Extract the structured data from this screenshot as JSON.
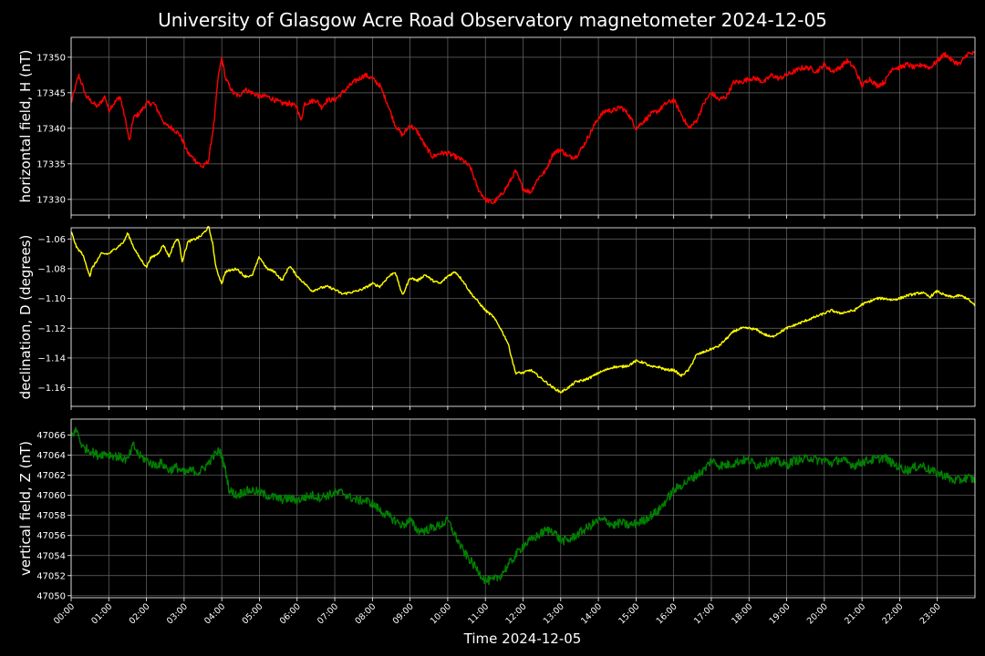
{
  "chart_data": {
    "type": "line",
    "title": "University of Glasgow Acre Road Observatory magnetometer 2024-12-05",
    "xlabel": "Time 2024-12-05",
    "x_ticks": [
      "00:00",
      "01:00",
      "02:00",
      "03:00",
      "04:00",
      "05:00",
      "06:00",
      "07:00",
      "08:00",
      "09:00",
      "10:00",
      "11:00",
      "12:00",
      "13:00",
      "14:00",
      "15:00",
      "16:00",
      "17:00",
      "18:00",
      "19:00",
      "20:00",
      "21:00",
      "22:00",
      "23:00"
    ],
    "x_unit": "hours",
    "xlim": [
      0,
      24
    ],
    "grid": true,
    "panels": [
      {
        "name": "horizontal",
        "ylabel": "horizontal field, H (nT)",
        "color": "#ff0000",
        "ylim": [
          17327.8,
          17352.8
        ],
        "y_ticks": [
          17330,
          17335,
          17340,
          17345,
          17350
        ],
        "y_tick_labels": [
          "17330",
          "17335",
          "17340",
          "17345",
          "17350"
        ],
        "noise": 0.35,
        "x": [
          0,
          0.2,
          0.4,
          0.5,
          0.7,
          0.9,
          1.0,
          1.05,
          1.3,
          1.45,
          1.55,
          1.65,
          1.8,
          2.0,
          2.2,
          2.35,
          2.5,
          2.7,
          2.9,
          3.1,
          3.3,
          3.5,
          3.65,
          3.8,
          3.9,
          4.0,
          4.1,
          4.3,
          4.45,
          4.6,
          4.8,
          5.0,
          5.2,
          5.4,
          5.6,
          5.8,
          6.0,
          6.1,
          6.2,
          6.5,
          6.65,
          6.8,
          7.0,
          7.2,
          7.5,
          7.8,
          8.0,
          8.2,
          8.4,
          8.6,
          8.8,
          9.0,
          9.2,
          9.4,
          9.6,
          9.8,
          10.0,
          10.2,
          10.4,
          10.6,
          10.8,
          11.0,
          11.2,
          11.4,
          11.6,
          11.8,
          12.0,
          12.2,
          12.4,
          12.6,
          12.8,
          13.0,
          13.2,
          13.4,
          13.6,
          13.8,
          14.0,
          14.2,
          14.4,
          14.6,
          14.8,
          15.0,
          15.2,
          15.4,
          15.6,
          15.8,
          16.0,
          16.2,
          16.4,
          16.6,
          16.8,
          17.0,
          17.2,
          17.4,
          17.6,
          17.8,
          18.0,
          18.2,
          18.4,
          18.6,
          18.8,
          19.0,
          19.2,
          19.4,
          19.6,
          19.8,
          20.0,
          20.2,
          20.4,
          20.6,
          20.8,
          21.0,
          21.2,
          21.4,
          21.6,
          21.8,
          22.0,
          22.2,
          22.4,
          22.6,
          22.8,
          23.0,
          23.2,
          23.4,
          23.6,
          23.8,
          24.0
        ],
        "y": [
          17343.5,
          17347.5,
          17344.5,
          17344.0,
          17343.0,
          17344.5,
          17342.5,
          17343.0,
          17344.5,
          17341.0,
          17338.0,
          17341.5,
          17342.0,
          17343.5,
          17343.5,
          17342.0,
          17340.5,
          17340.0,
          17339.0,
          17336.5,
          17335.5,
          17334.5,
          17335.5,
          17341.0,
          17347.0,
          17350.0,
          17347.0,
          17345.0,
          17344.5,
          17345.5,
          17345.0,
          17344.5,
          17344.5,
          17344.0,
          17343.5,
          17343.5,
          17343.0,
          17341.0,
          17343.5,
          17344.0,
          17343.0,
          17344.0,
          17344.0,
          17345.0,
          17346.5,
          17347.5,
          17347.0,
          17346.0,
          17343.5,
          17340.5,
          17339.0,
          17340.5,
          17339.5,
          17337.5,
          17336.0,
          17336.5,
          17336.5,
          17336.0,
          17335.5,
          17334.5,
          17331.5,
          17330.0,
          17329.5,
          17330.5,
          17332.0,
          17334.0,
          17331.5,
          17331.0,
          17333.0,
          17334.0,
          17336.5,
          17337.0,
          17336.0,
          17336.0,
          17337.5,
          17339.5,
          17341.5,
          17342.5,
          17342.5,
          17343.0,
          17342.0,
          17340.0,
          17341.0,
          17342.0,
          17342.5,
          17343.5,
          17344.0,
          17342.0,
          17340.0,
          17341.0,
          17343.5,
          17345.0,
          17344.0,
          17344.5,
          17346.5,
          17346.5,
          17347.0,
          17347.0,
          17346.5,
          17347.5,
          17347.0,
          17347.5,
          17348.0,
          17348.5,
          17348.5,
          17348.0,
          17349.0,
          17348.0,
          17348.5,
          17349.5,
          17348.5,
          17346.0,
          17347.0,
          17346.0,
          17346.5,
          17348.5,
          17348.5,
          17349.0,
          17348.5,
          17349.0,
          17348.5,
          17349.5,
          17350.5,
          17349.5,
          17349.0,
          17350.5,
          17350.5
        ]
      },
      {
        "name": "declination",
        "ylabel": "declination, D (degrees)",
        "color": "#ffff00",
        "ylim": [
          -1.1725,
          -1.0525
        ],
        "y_ticks": [
          -1.16,
          -1.14,
          -1.12,
          -1.1,
          -1.08,
          -1.06
        ],
        "y_tick_labels": [
          "−1.16",
          "−1.14",
          "−1.12",
          "−1.10",
          "−1.08",
          "−1.06"
        ],
        "noise": 0.0008,
        "x": [
          0,
          0.15,
          0.3,
          0.5,
          0.55,
          0.8,
          1.0,
          1.2,
          1.4,
          1.5,
          1.65,
          1.8,
          2.0,
          2.1,
          2.3,
          2.45,
          2.6,
          2.75,
          2.85,
          2.95,
          3.1,
          3.3,
          3.45,
          3.65,
          3.75,
          3.85,
          4.0,
          4.1,
          4.4,
          4.6,
          4.8,
          5.0,
          5.2,
          5.4,
          5.6,
          5.8,
          6.0,
          6.2,
          6.4,
          6.6,
          6.8,
          7.0,
          7.2,
          7.4,
          7.6,
          7.8,
          8.0,
          8.2,
          8.4,
          8.6,
          8.8,
          9.0,
          9.2,
          9.4,
          9.6,
          9.8,
          10.0,
          10.2,
          10.4,
          10.6,
          10.8,
          11.0,
          11.2,
          11.4,
          11.6,
          11.8,
          12.0,
          12.2,
          12.4,
          12.6,
          12.8,
          13.0,
          13.2,
          13.4,
          13.6,
          13.8,
          14.0,
          14.2,
          14.4,
          14.6,
          14.8,
          15.0,
          15.2,
          15.4,
          15.6,
          15.8,
          16.0,
          16.2,
          16.4,
          16.6,
          16.8,
          17.0,
          17.2,
          17.4,
          17.6,
          17.8,
          18.0,
          18.2,
          18.4,
          18.6,
          18.8,
          19.0,
          19.2,
          19.4,
          19.6,
          19.8,
          20.0,
          20.2,
          20.4,
          20.6,
          20.8,
          21.0,
          21.2,
          21.4,
          21.6,
          21.8,
          22.0,
          22.2,
          22.4,
          22.6,
          22.8,
          23.0,
          23.2,
          23.4,
          23.6,
          23.8,
          24.0
        ],
        "y": [
          -1.055,
          -1.066,
          -1.07,
          -1.085,
          -1.08,
          -1.07,
          -1.07,
          -1.066,
          -1.062,
          -1.056,
          -1.065,
          -1.072,
          -1.079,
          -1.073,
          -1.07,
          -1.064,
          -1.072,
          -1.062,
          -1.06,
          -1.075,
          -1.062,
          -1.06,
          -1.058,
          -1.052,
          -1.062,
          -1.08,
          -1.09,
          -1.082,
          -1.08,
          -1.085,
          -1.085,
          -1.072,
          -1.08,
          -1.082,
          -1.088,
          -1.078,
          -1.085,
          -1.09,
          -1.095,
          -1.093,
          -1.092,
          -1.094,
          -1.097,
          -1.096,
          -1.095,
          -1.093,
          -1.09,
          -1.092,
          -1.086,
          -1.082,
          -1.098,
          -1.086,
          -1.088,
          -1.084,
          -1.088,
          -1.09,
          -1.085,
          -1.082,
          -1.088,
          -1.096,
          -1.102,
          -1.108,
          -1.112,
          -1.12,
          -1.13,
          -1.15,
          -1.15,
          -1.148,
          -1.152,
          -1.156,
          -1.16,
          -1.163,
          -1.16,
          -1.156,
          -1.155,
          -1.153,
          -1.15,
          -1.148,
          -1.146,
          -1.146,
          -1.145,
          -1.142,
          -1.143,
          -1.146,
          -1.146,
          -1.148,
          -1.148,
          -1.152,
          -1.148,
          -1.138,
          -1.136,
          -1.134,
          -1.132,
          -1.127,
          -1.122,
          -1.12,
          -1.12,
          -1.121,
          -1.124,
          -1.126,
          -1.123,
          -1.12,
          -1.118,
          -1.116,
          -1.114,
          -1.112,
          -1.11,
          -1.108,
          -1.11,
          -1.109,
          -1.108,
          -1.104,
          -1.102,
          -1.1,
          -1.1,
          -1.101,
          -1.1,
          -1.098,
          -1.097,
          -1.096,
          -1.099,
          -1.095,
          -1.098,
          -1.099,
          -1.098,
          -1.1,
          -1.105
        ]
      },
      {
        "name": "vertical",
        "ylabel": "vertical field, Z (nT)",
        "color": "#008000",
        "ylim": [
          47049.8,
          47067.6
        ],
        "y_ticks": [
          47050,
          47052,
          47054,
          47056,
          47058,
          47060,
          47062,
          47064,
          47066
        ],
        "y_tick_labels": [
          "47050",
          "47052",
          "47054",
          "47056",
          "47058",
          "47060",
          "47062",
          "47064",
          "47066"
        ],
        "noise": 0.45,
        "x": [
          0,
          0.15,
          0.3,
          0.5,
          0.7,
          0.9,
          1.1,
          1.3,
          1.5,
          1.65,
          1.8,
          2.0,
          2.2,
          2.4,
          2.6,
          2.8,
          3.0,
          3.2,
          3.4,
          3.6,
          3.8,
          3.95,
          4.1,
          4.2,
          4.4,
          4.6,
          4.8,
          5.0,
          5.2,
          5.4,
          5.6,
          5.8,
          6.0,
          6.2,
          6.4,
          6.6,
          6.8,
          7.0,
          7.2,
          7.4,
          7.6,
          7.8,
          8.0,
          8.2,
          8.4,
          8.6,
          8.8,
          9.0,
          9.2,
          9.4,
          9.6,
          9.8,
          10.0,
          10.2,
          10.4,
          10.6,
          10.8,
          11.0,
          11.2,
          11.4,
          11.6,
          11.8,
          12.0,
          12.2,
          12.4,
          12.6,
          12.8,
          13.0,
          13.2,
          13.4,
          13.6,
          13.8,
          14.0,
          14.2,
          14.4,
          14.6,
          14.8,
          15.0,
          15.2,
          15.4,
          15.6,
          15.8,
          16.0,
          16.2,
          16.4,
          16.6,
          16.8,
          17.0,
          17.2,
          17.4,
          17.6,
          17.8,
          18.0,
          18.2,
          18.4,
          18.6,
          18.8,
          19.0,
          19.2,
          19.4,
          19.6,
          19.8,
          20.0,
          20.2,
          20.4,
          20.6,
          20.8,
          21.0,
          21.2,
          21.4,
          21.6,
          21.8,
          22.0,
          22.2,
          22.4,
          22.6,
          22.8,
          23.0,
          23.2,
          23.4,
          23.6,
          23.8,
          24.0
        ],
        "y": [
          47066.0,
          47066.5,
          47064.8,
          47064.5,
          47064.0,
          47064.2,
          47064.0,
          47063.8,
          47063.5,
          47065.0,
          47064.0,
          47063.5,
          47063.0,
          47063.2,
          47062.5,
          47062.8,
          47062.2,
          47062.5,
          47062.3,
          47063.0,
          47064.0,
          47064.5,
          47062.5,
          47060.5,
          47060.0,
          47060.4,
          47060.5,
          47060.3,
          47060.0,
          47059.8,
          47059.6,
          47059.7,
          47059.5,
          47059.8,
          47060.0,
          47059.8,
          47060.0,
          47060.2,
          47060.3,
          47059.8,
          47059.5,
          47059.5,
          47059.2,
          47058.5,
          47058.0,
          47057.5,
          47057.0,
          47057.5,
          47056.5,
          47056.5,
          47056.8,
          47057.0,
          47057.5,
          47056.0,
          47054.5,
          47053.5,
          47052.5,
          47051.5,
          47051.5,
          47052.0,
          47053.0,
          47054.0,
          47055.0,
          47055.5,
          47056.0,
          47056.5,
          47056.5,
          47055.5,
          47055.5,
          47056.0,
          47056.5,
          47057.0,
          47057.5,
          47057.5,
          47057.0,
          47057.3,
          47057.0,
          47057.2,
          47057.5,
          47058.0,
          47058.5,
          47059.5,
          47060.5,
          47061.0,
          47061.5,
          47062.0,
          47062.5,
          47063.5,
          47063.0,
          47063.0,
          47063.2,
          47063.5,
          47063.5,
          47063.0,
          47063.2,
          47063.5,
          47063.3,
          47063.0,
          47063.5,
          47063.5,
          47063.8,
          47063.5,
          47063.5,
          47063.2,
          47063.6,
          47063.3,
          47063.0,
          47063.3,
          47063.5,
          47063.6,
          47063.8,
          47063.2,
          47062.8,
          47062.5,
          47062.8,
          47063.0,
          47062.5,
          47062.2,
          47062.0,
          47061.5,
          47061.5,
          47061.8,
          47061.5
        ]
      }
    ]
  }
}
